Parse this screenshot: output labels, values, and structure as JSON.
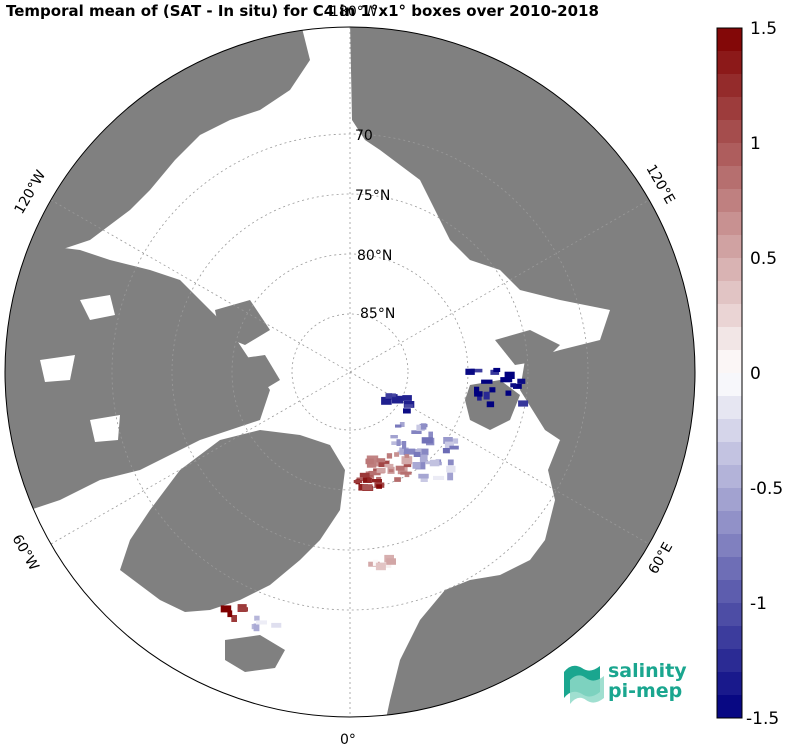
{
  "title": "Temporal mean of (SAT - In situ) for C4 in 1°x1° boxes over 2010-2018",
  "map": {
    "projection": "north polar stereographic",
    "lat_labels": [
      "70",
      "75°N",
      "80°N",
      "85°N"
    ],
    "lon_labels": [
      "180°W",
      "120°W",
      "60°W",
      "0°",
      "60°E",
      "120°E"
    ],
    "land_color": "#808080",
    "ocean_color": "#ffffff"
  },
  "colorbar": {
    "min": -1.5,
    "max": 1.5,
    "ticks": [
      "1.5",
      "1",
      "0.5",
      "0",
      "-0.5",
      "-1",
      "-1.5"
    ],
    "low_color": "#00007f",
    "high_color": "#7f0000"
  },
  "logo": {
    "line1": "salinity",
    "line2": "pi-mep"
  }
}
